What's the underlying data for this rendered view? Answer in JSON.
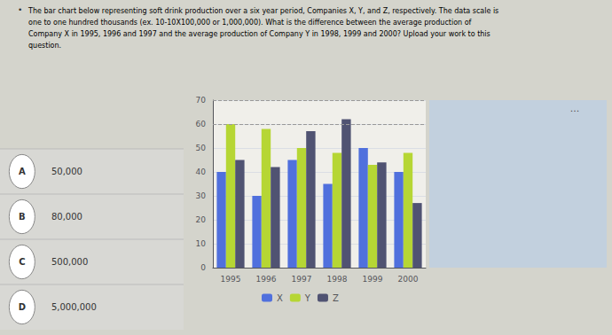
{
  "chart_data": {
    "type": "bar",
    "categories": [
      "1995",
      "1996",
      "1997",
      "1998",
      "1999",
      "2000"
    ],
    "series": [
      {
        "name": "X",
        "values": [
          40,
          30,
          45,
          35,
          50,
          40
        ]
      },
      {
        "name": "Y",
        "values": [
          60,
          58,
          50,
          48,
          43,
          48
        ]
      },
      {
        "name": "Z",
        "values": [
          45,
          42,
          57,
          62,
          44,
          27
        ]
      }
    ],
    "ylim": [
      0,
      70
    ],
    "yticks": [
      0,
      10,
      20,
      30,
      40,
      50,
      60,
      70
    ],
    "grid": true,
    "legend": "bottom",
    "hlines": [
      60,
      70
    ],
    "bullet": "•",
    "annotations": [
      "The bar chart below representing soft drink production over a six year period, Companies X, Y, and Z, respectively. The data scale is",
      "one to one hundred thousands (ex. 10-10X100,000 or 1,000,000). What is the difference between the average production of",
      "Company X in 1995, 1996 and 1997 and the average production of Company Y in 1998, 1999 and 2000? Upload your work to this",
      "question."
    ],
    "options": [
      {
        "label": "A",
        "text": "50,000"
      },
      {
        "label": "B",
        "text": "80,000"
      },
      {
        "label": "C",
        "text": "500,000"
      },
      {
        "label": "D",
        "text": "5,000,000"
      }
    ],
    "panel_text": "..."
  }
}
